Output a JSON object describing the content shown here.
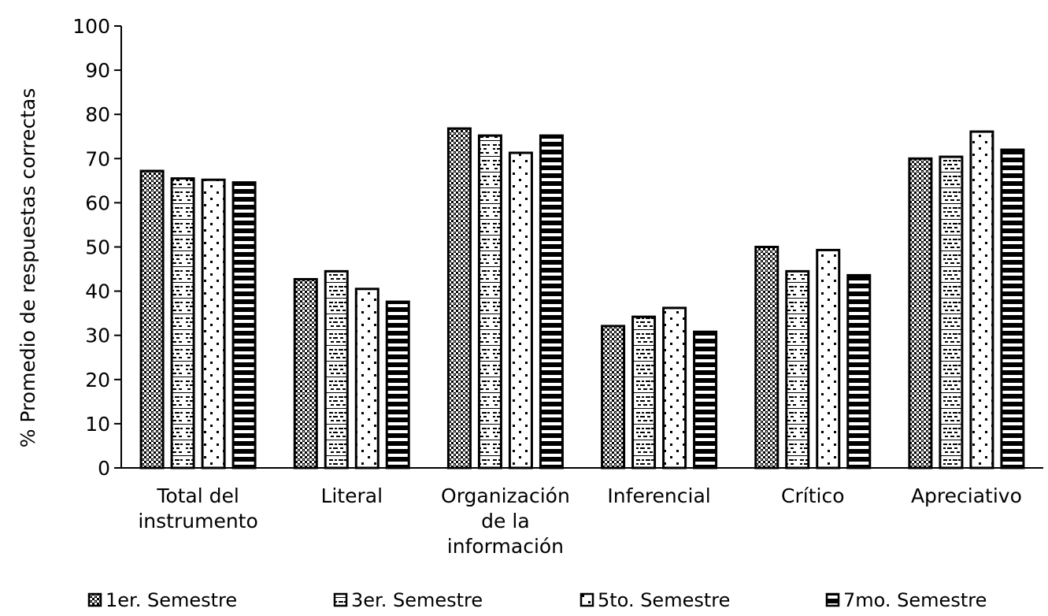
{
  "chart_data": {
    "type": "bar",
    "title": "",
    "xlabel": "",
    "ylabel": "% Promedio de respuestas correctas",
    "ylim": [
      0,
      100
    ],
    "yticks": [
      0,
      10,
      20,
      30,
      40,
      50,
      60,
      70,
      80,
      90,
      100
    ],
    "grid": false,
    "legend_position": "bottom",
    "categories": [
      [
        "Total del",
        "instrumento"
      ],
      [
        "Literal"
      ],
      [
        "Organización",
        "de la",
        "información"
      ],
      [
        "Inferencial"
      ],
      [
        "Crítico"
      ],
      [
        "Apreciativo"
      ]
    ],
    "series": [
      {
        "name": "1er. Semestre",
        "pattern": "checker",
        "values": [
          67.2,
          42.7,
          76.8,
          32.1,
          50.0,
          70.0
        ]
      },
      {
        "name": "3er. Semestre",
        "pattern": "text",
        "values": [
          65.5,
          44.5,
          75.2,
          34.2,
          44.5,
          70.4
        ]
      },
      {
        "name": "5to. Semestre",
        "pattern": "dots",
        "values": [
          65.2,
          40.5,
          71.3,
          36.2,
          49.3,
          76.1
        ]
      },
      {
        "name": "7mo. Semestre",
        "pattern": "hstripes",
        "values": [
          64.6,
          37.6,
          75.2,
          30.8,
          43.6,
          72.0
        ]
      }
    ]
  }
}
